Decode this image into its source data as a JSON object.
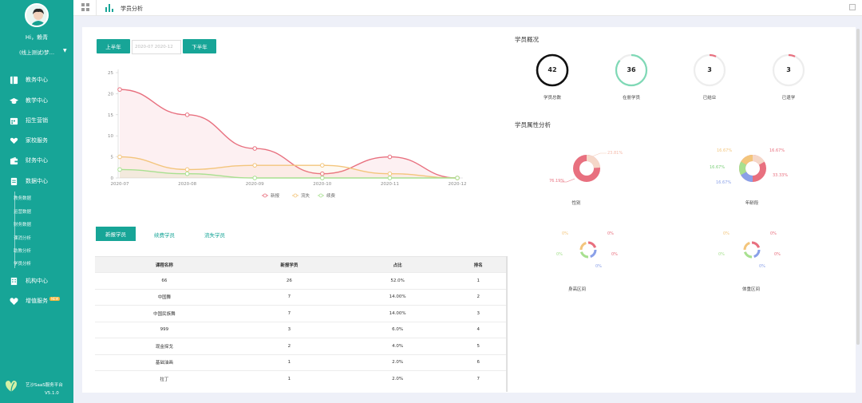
{
  "sidebar": {
    "greeting": "Hi，赖青",
    "org": "(线上测试)梦…",
    "items": [
      {
        "label": "教务中心",
        "icon": "book-icon"
      },
      {
        "label": "教学中心",
        "icon": "graduation-cap-icon"
      },
      {
        "label": "招生营销",
        "icon": "calendar-icon"
      },
      {
        "label": "家校服务",
        "icon": "heart-hands-icon"
      },
      {
        "label": "财务中心",
        "icon": "wallet-icon"
      },
      {
        "label": "数据中心",
        "icon": "document-icon"
      },
      {
        "label": "机构中心",
        "icon": "building-icon"
      },
      {
        "label": "增值服务",
        "icon": "heart-icon",
        "badge": "NEW"
      }
    ],
    "subitems": [
      "教务数据",
      "运营数据",
      "财务数据",
      "课消分析",
      "助教分析",
      "学员分析"
    ],
    "brand": "艺沙SaaS服务平台",
    "version": "V5.1.0"
  },
  "topbar": {
    "title": "学员分析"
  },
  "filter": {
    "first_half": "上半年",
    "second_half": "下半年",
    "range": "2020-07  2020-12"
  },
  "chart_data": {
    "type": "line",
    "x": [
      "2020-07",
      "2020-08",
      "2020-09",
      "2020-10",
      "2020-11",
      "2020-12"
    ],
    "y_ticks": [
      "25",
      "20",
      "15",
      "10",
      "5",
      "0"
    ],
    "ylim": [
      0,
      25
    ],
    "series": [
      {
        "name": "新报",
        "color": "#e8707f",
        "values": [
          21,
          15,
          7,
          1,
          5,
          0
        ]
      },
      {
        "name": "流失",
        "color": "#f3c57c",
        "values": [
          5,
          2,
          3,
          3,
          1,
          0
        ]
      },
      {
        "name": "续费",
        "color": "#a8e090",
        "values": [
          2,
          1,
          0,
          0,
          0,
          0
        ]
      }
    ]
  },
  "tabs": [
    "新报学员",
    "续费学员",
    "流失学员"
  ],
  "table": {
    "headers": [
      "课程名称",
      "新报学员",
      "占比",
      "排名"
    ],
    "rows": [
      [
        "66",
        "26",
        "52.0%",
        "1"
      ],
      [
        "中国舞",
        "7",
        "14.00%",
        "2"
      ],
      [
        "中国民族舞",
        "7",
        "14.00%",
        "3"
      ],
      [
        "999",
        "3",
        "6.0%",
        "4"
      ],
      [
        "现金探戈",
        "2",
        "4.0%",
        "5"
      ],
      [
        "基础油画",
        "1",
        "2.0%",
        "6"
      ],
      [
        "拉丁",
        "1",
        "2.0%",
        "7"
      ]
    ]
  },
  "overview": {
    "title": "学员概况",
    "stats": [
      {
        "value": "42",
        "label": "学员总数",
        "color": "#111111",
        "fraction": 1.0
      },
      {
        "value": "36",
        "label": "在册学员",
        "color": "#7fd9b6",
        "fraction": 0.86
      },
      {
        "value": "3",
        "label": "已结业",
        "color": "#e8707f",
        "fraction": 0.07
      },
      {
        "value": "3",
        "label": "已退学",
        "color": "#e8707f",
        "fraction": 0.07
      }
    ]
  },
  "attributes": {
    "title": "学员属性分析",
    "donuts": [
      {
        "label": "性别",
        "labels": [
          "23.81%",
          "76.19%"
        ]
      },
      {
        "label": "年龄段",
        "labels": [
          "16.67%",
          "16.67%",
          "16.67%",
          "16.67%",
          "33.33%"
        ]
      },
      {
        "label": "身高区间",
        "labels": [
          "0%",
          "0%",
          "0%",
          "0%",
          "0%"
        ]
      },
      {
        "label": "体重区间",
        "labels": [
          "0%",
          "0%",
          "0%",
          "0%",
          "0%"
        ]
      }
    ]
  }
}
